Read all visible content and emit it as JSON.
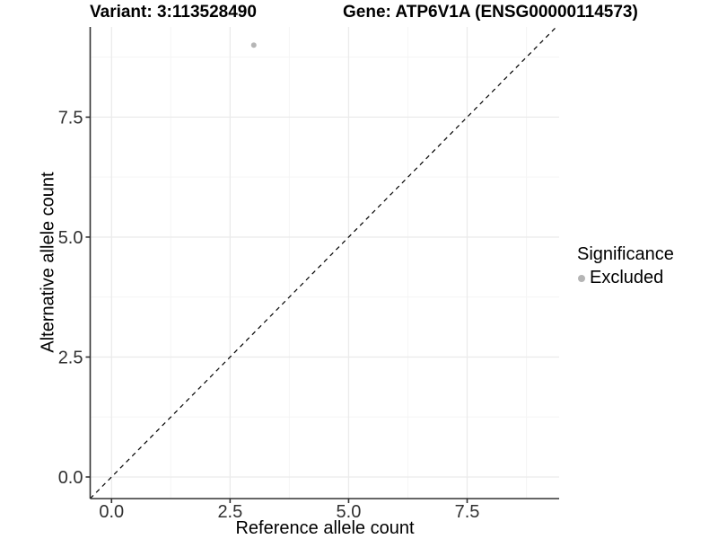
{
  "header": {
    "variant_title": "Variant: 3:113528490",
    "gene_title": "Gene: ATP6V1A (ENSG00000114573)"
  },
  "legend": {
    "title": "Significance",
    "items": [
      {
        "label": "Excluded",
        "color": "#b5b5b5"
      }
    ]
  },
  "chart_data": {
    "type": "scatter",
    "title": "",
    "xlabel": "Reference allele count",
    "ylabel": "Alternative allele count",
    "xlim": [
      -0.45,
      9.44
    ],
    "ylim": [
      -0.45,
      9.38
    ],
    "xticks": [
      0,
      2.5,
      5,
      7.5
    ],
    "xtick_labels": [
      "0.0",
      "2.5",
      "5.0",
      "7.5"
    ],
    "yticks": [
      0,
      2.5,
      5,
      7.5
    ],
    "ytick_labels": [
      "0.0",
      "2.5",
      "5.0",
      "7.5"
    ],
    "minor_xticks": [
      1.25,
      3.75,
      6.25,
      8.75
    ],
    "minor_yticks": [
      1.25,
      3.75,
      6.25,
      8.75
    ],
    "grid": true,
    "legend_position": "right",
    "series": [
      {
        "name": "Excluded",
        "color": "#b5b5b5",
        "point_radius": 3,
        "points": [
          {
            "x": 3,
            "y": 9
          }
        ]
      }
    ],
    "reference_line": {
      "type": "identity",
      "style": "dashed",
      "color": "#000000"
    }
  },
  "colors": {
    "background": "#ffffff",
    "axis_line": "#333333",
    "tick_mark": "#333333",
    "tick_label": "#303030",
    "grid_major": "#ebebeb",
    "grid_minor": "#f5f5f5"
  }
}
